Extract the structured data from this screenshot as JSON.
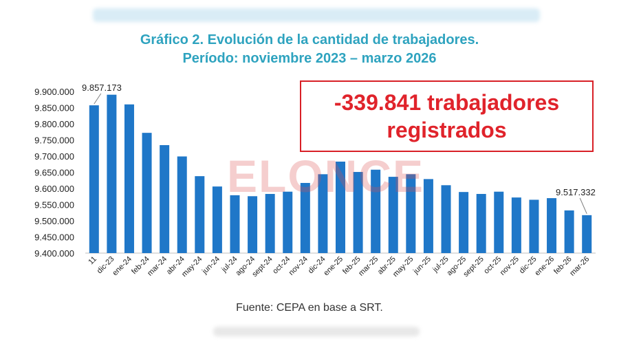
{
  "header": {
    "title_line1": "Gráfico 2. Evolución de la cantidad de trabajadores.",
    "title_line2": "Período: noviembre 2023 – marzo 2026"
  },
  "callout": {
    "line1": "-339.841 trabajadores",
    "line2": "registrados"
  },
  "source": "Fuente: CEPA en base a SRT.",
  "watermark": "ELONCE",
  "colors": {
    "bar": "#1f77c8",
    "title": "#2ea3bf",
    "callout": "#e0232b"
  },
  "chart_data": {
    "type": "bar",
    "categories": [
      "11",
      "dic-23",
      "ene-24",
      "feb-24",
      "mar-24",
      "abr-24",
      "may-24",
      "jun-24",
      "jul-24",
      "ago-24",
      "sept-24",
      "oct-24",
      "nov-24",
      "dic-24",
      "ene-25",
      "feb-25",
      "mar-25",
      "abr-25",
      "may-25",
      "jun-25",
      "jul-25",
      "ago-25",
      "sept-25",
      "oct-25",
      "nov-25",
      "dic-25",
      "ene-26",
      "feb-26",
      "mar-26"
    ],
    "values": [
      9857173,
      9890000,
      9860000,
      9772000,
      9734000,
      9699000,
      9638000,
      9606000,
      9579000,
      9576000,
      9583000,
      9590000,
      9617000,
      9644000,
      9683000,
      9651000,
      9658000,
      9636000,
      9644000,
      9629000,
      9610000,
      9589000,
      9583000,
      9590000,
      9572000,
      9565000,
      9570000,
      9532000,
      9517332
    ],
    "yticks": [
      "9.900.000",
      "9.850.000",
      "9.800.000",
      "9.750.000",
      "9.700.000",
      "9.650.000",
      "9.600.000",
      "9.550.000",
      "9.500.000",
      "9.450.000",
      "9.400.000"
    ],
    "ylim": [
      9400000,
      9900000
    ],
    "annotations": {
      "first_label": "9.857.173",
      "last_label": "9.517.332"
    },
    "grid": false,
    "legend": "none"
  }
}
